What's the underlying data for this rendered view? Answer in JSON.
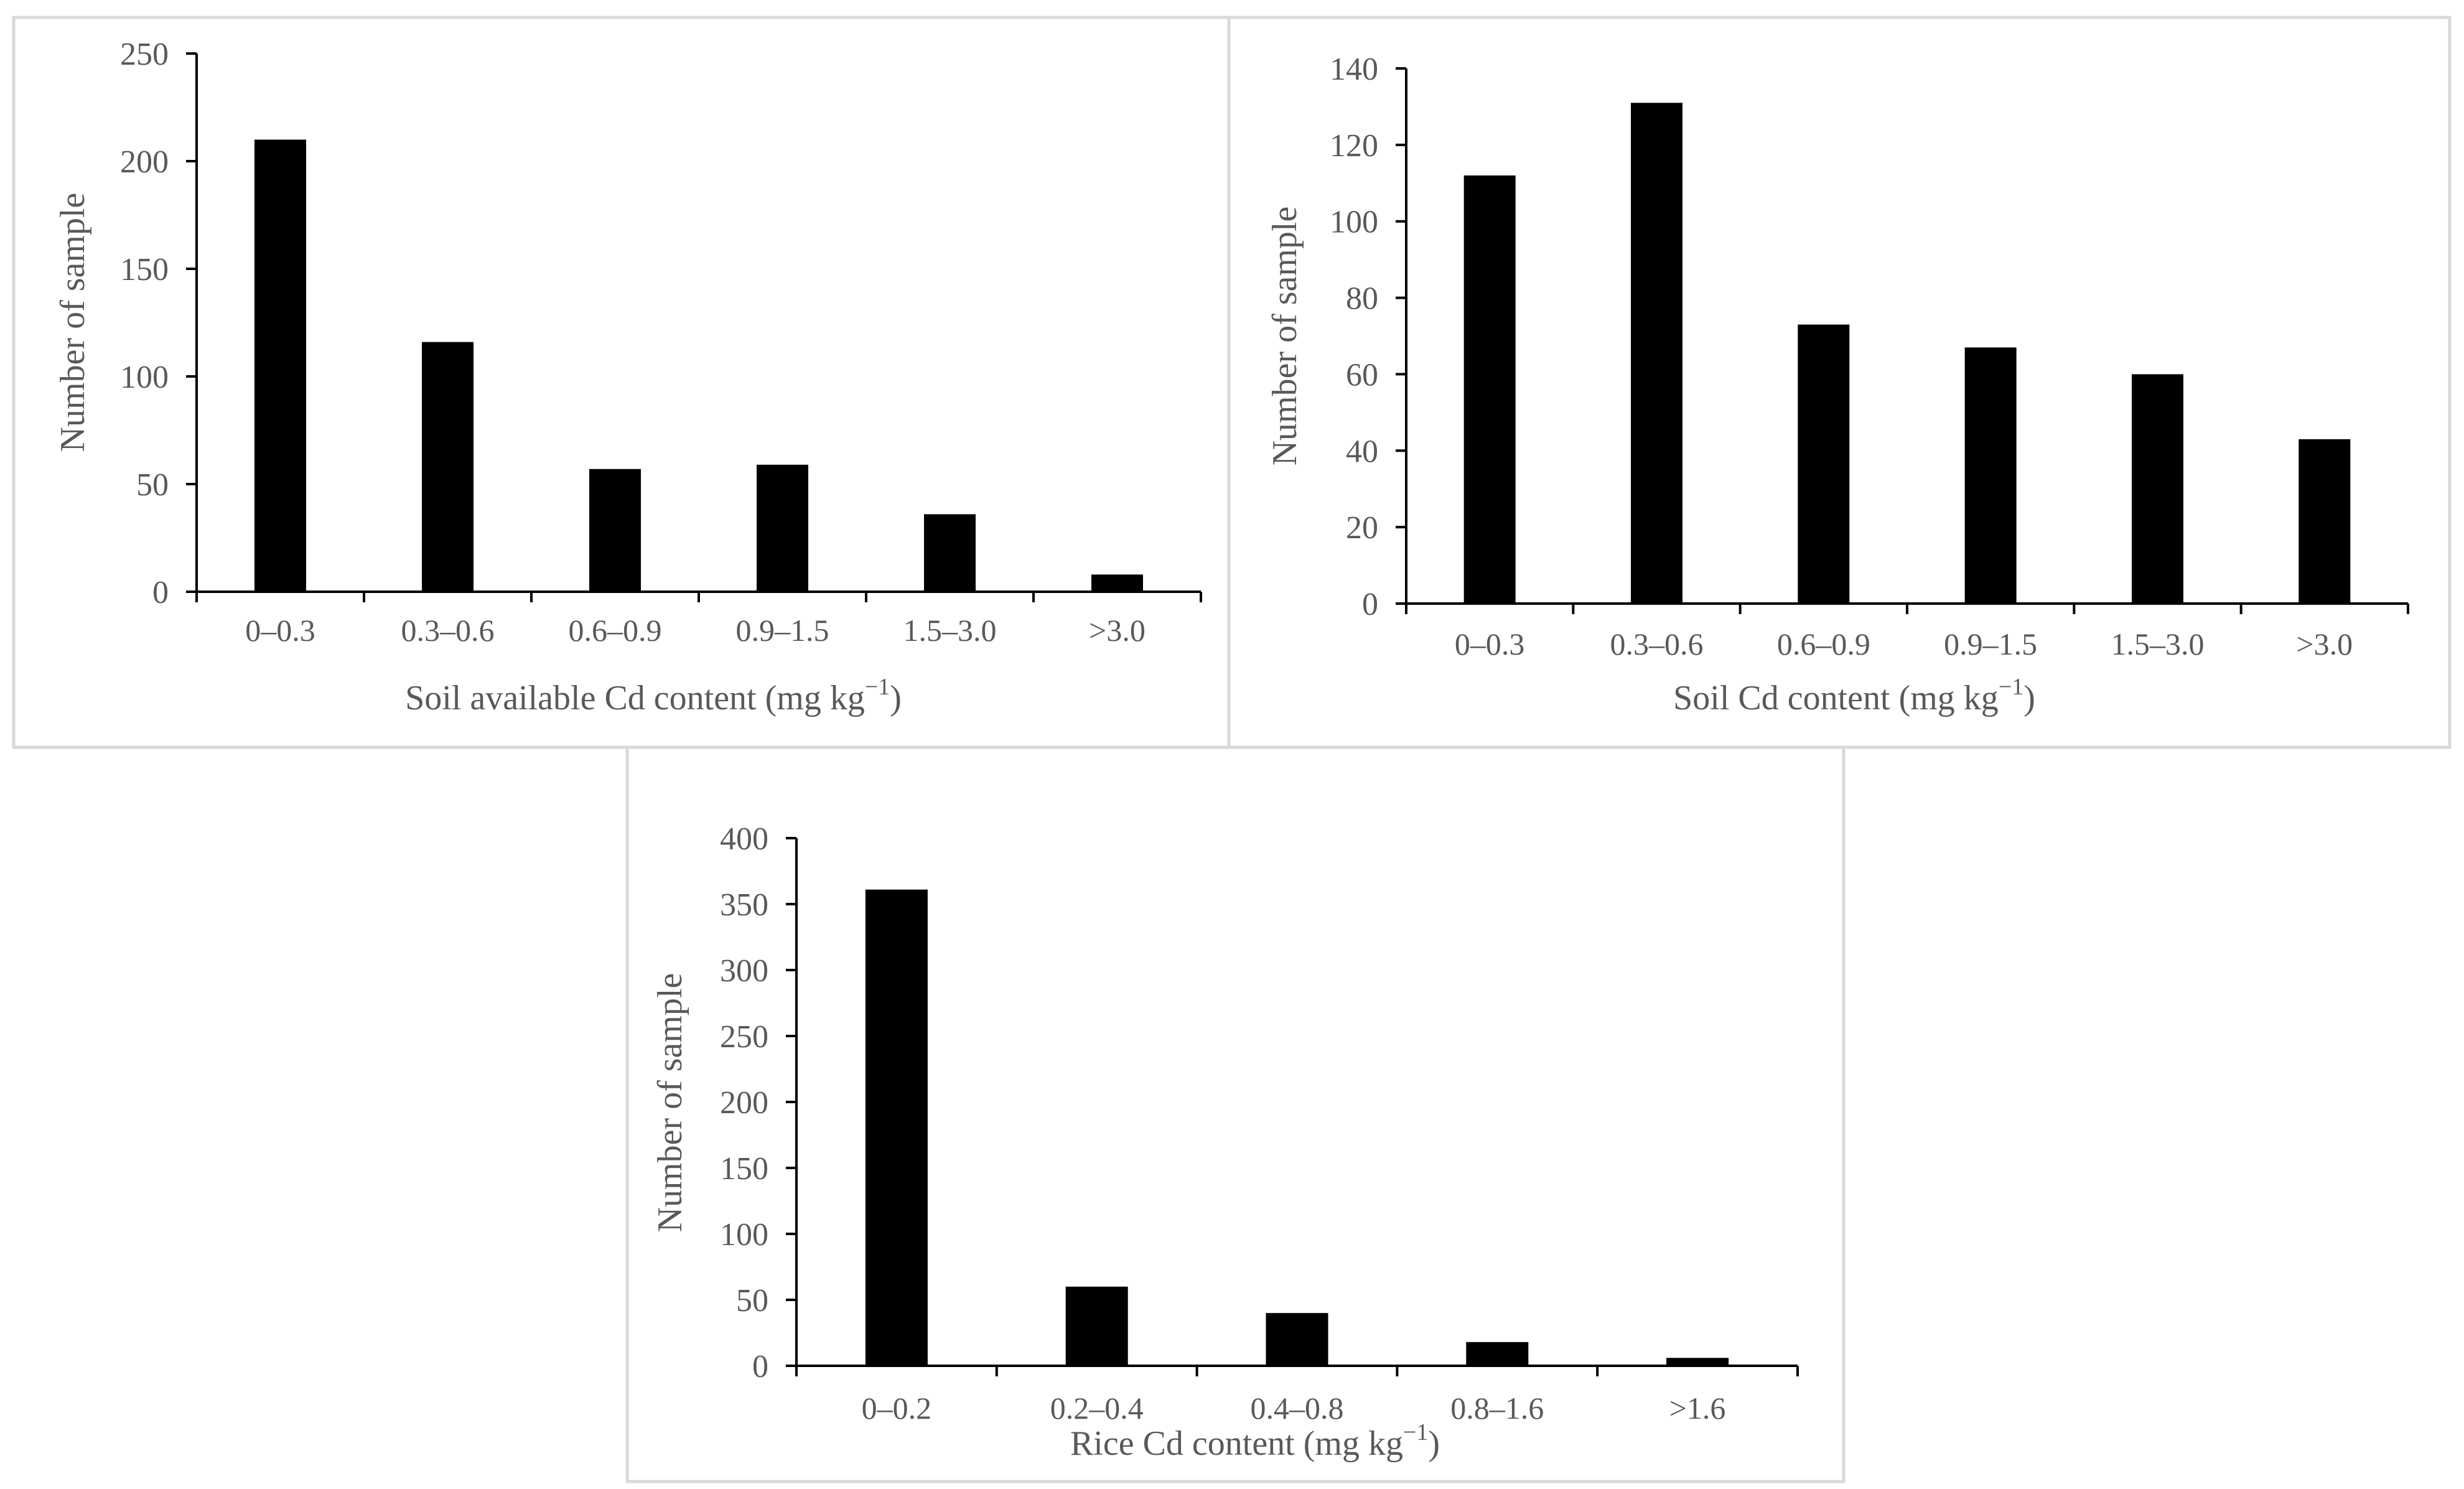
{
  "chart_data": [
    {
      "id": "soil-available-cd",
      "type": "bar",
      "categories": [
        "0–0.3",
        "0.3–0.6",
        "0.6–0.9",
        "0.9–1.5",
        "1.5–3.0",
        ">3.0"
      ],
      "values": [
        210,
        116,
        57,
        59,
        36,
        8
      ],
      "title": "",
      "ylabel": "Number of sample",
      "xlabel": {
        "prefix": "Soil available Cd content (mg kg",
        "sup": "−1",
        "suffix": ")"
      },
      "ylim": [
        0,
        250
      ],
      "yticks": [
        0,
        50,
        100,
        150,
        200,
        250
      ],
      "grid": false,
      "bar_color": "#000000"
    },
    {
      "id": "soil-cd",
      "type": "bar",
      "categories": [
        "0–0.3",
        "0.3–0.6",
        "0.6–0.9",
        "0.9–1.5",
        "1.5–3.0",
        ">3.0"
      ],
      "values": [
        112,
        131,
        73,
        67,
        60,
        43
      ],
      "title": "",
      "ylabel": "Number of sample",
      "xlabel": {
        "prefix": "Soil Cd content (mg kg",
        "sup": "−1",
        "suffix": ")"
      },
      "ylim": [
        0,
        140
      ],
      "yticks": [
        0,
        20,
        40,
        60,
        80,
        100,
        120,
        140
      ],
      "grid": false,
      "bar_color": "#000000"
    },
    {
      "id": "rice-cd",
      "type": "bar",
      "categories": [
        "0–0.2",
        "0.2–0.4",
        "0.4–0.8",
        "0.8–1.6",
        ">1.6"
      ],
      "values": [
        361,
        60,
        40,
        18,
        6
      ],
      "title": "",
      "ylabel": "Number of sample",
      "xlabel": {
        "prefix": "Rice Cd content (mg kg",
        "sup": "−1",
        "suffix": ")"
      },
      "ylim": [
        0,
        400
      ],
      "yticks": [
        0,
        50,
        100,
        150,
        200,
        250,
        300,
        350,
        400
      ],
      "grid": false,
      "bar_color": "#000000"
    }
  ]
}
